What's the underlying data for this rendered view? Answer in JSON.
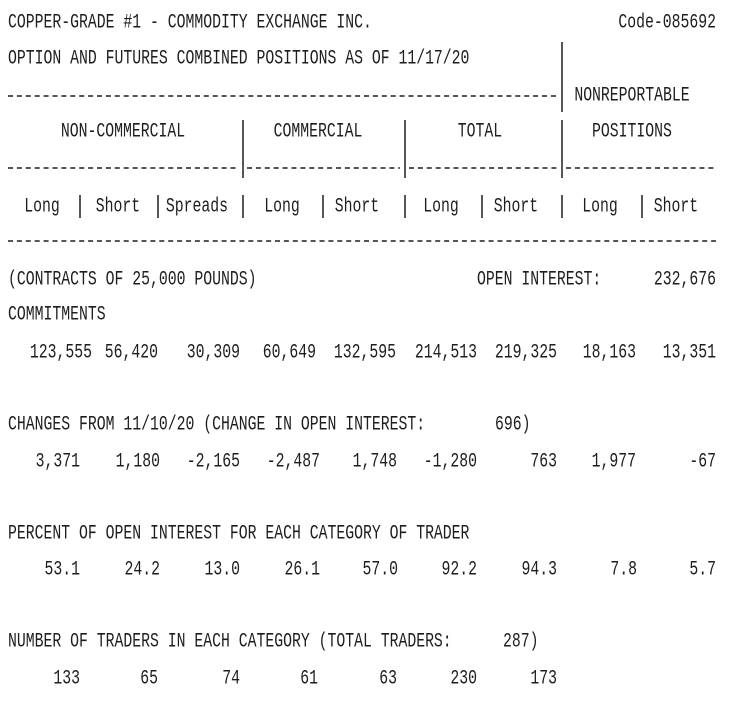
{
  "header": {
    "title": "COPPER-GRADE #1 - COMMODITY EXCHANGE INC.",
    "code": "Code-085692",
    "subtitle": "OPTION AND FUTURES COMBINED POSITIONS AS OF 11/17/20"
  },
  "columns": {
    "groups": [
      "NON-COMMERCIAL",
      "COMMERCIAL",
      "TOTAL"
    ],
    "nonreportable": [
      "NONREPORTABLE",
      "POSITIONS"
    ],
    "subheaders": [
      "Long",
      "Short",
      "Spreads",
      "Long",
      "Short",
      "Long",
      "Short",
      "Long",
      "Short"
    ]
  },
  "units": "(CONTRACTS OF 25,000 POUNDS)",
  "open_interest_label": "OPEN INTEREST:",
  "open_interest": "232,676",
  "sections": [
    {
      "label": "COMMITMENTS",
      "values": [
        "123,555",
        "56,420",
        "30,309",
        "60,649",
        "132,595",
        "214,513",
        "219,325",
        "18,163",
        "13,351"
      ]
    },
    {
      "label": "CHANGES FROM 11/10/20 (CHANGE IN OPEN INTEREST:",
      "note": "696)",
      "values": [
        "3,371",
        "1,180",
        "-2,165",
        "-2,487",
        "1,748",
        "-1,280",
        "763",
        "1,977",
        "-67"
      ]
    },
    {
      "label": "PERCENT OF OPEN INTEREST FOR EACH CATEGORY OF TRADER",
      "values": [
        "53.1",
        "24.2",
        "13.0",
        "26.1",
        "57.0",
        "92.2",
        "94.3",
        "7.8",
        "5.7"
      ]
    },
    {
      "label": "NUMBER OF TRADERS IN EACH CATEGORY (TOTAL TRADERS:",
      "note": "287)",
      "values": [
        "133",
        "65",
        "74",
        "61",
        "63",
        "230",
        "173"
      ]
    }
  ]
}
